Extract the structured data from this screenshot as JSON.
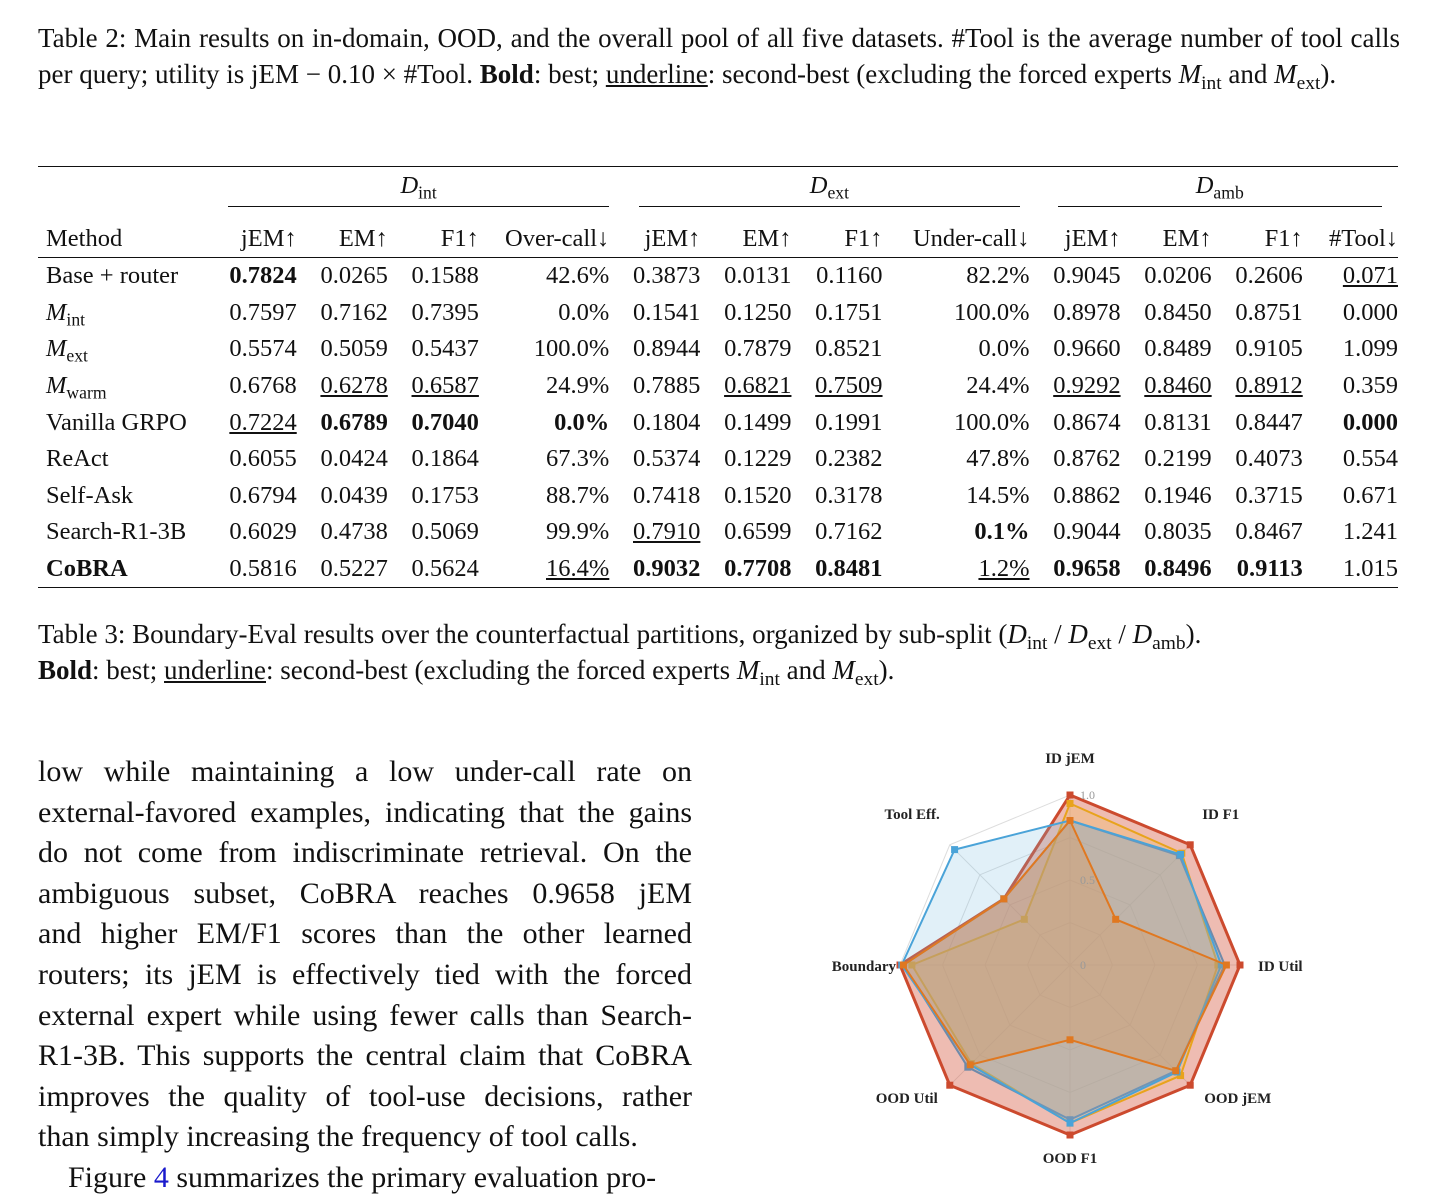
{
  "caption_table2": {
    "label": "Table 2:",
    "text1": "Main results on in-domain, OOD, and the overall pool of all five datasets. #Tool is the average number of tool calls per query; utility is jEM − 0.10 × #Tool. ",
    "bold_word": "Bold",
    "text2": ": best; ",
    "underline_word": "underline",
    "text3": ": second-best (excluding the forced experts ",
    "m_int": "M",
    "int_sub": "int",
    "and": " and ",
    "m_ext": "M",
    "ext_sub": "ext",
    "end": ")."
  },
  "table": {
    "groups": [
      {
        "sym": "D",
        "sub": "int"
      },
      {
        "sym": "D",
        "sub": "ext"
      },
      {
        "sym": "D",
        "sub": "amb"
      }
    ],
    "headers": [
      "Method",
      "jEM↑",
      "EM↑",
      "F1↑",
      "Over-call↓",
      "jEM↑",
      "EM↑",
      "F1↑",
      "Under-call↓",
      "jEM↑",
      "EM↑",
      "F1↑",
      "#Tool↓"
    ],
    "rows": [
      {
        "method": "Base + router",
        "cells": [
          "0.7824",
          "0.0265",
          "0.1588",
          "42.6%",
          "0.3873",
          "0.0131",
          "0.1160",
          "82.2%",
          "0.9045",
          "0.0206",
          "0.2606",
          "0.071"
        ],
        "bold": [
          0
        ],
        "under": [
          11
        ]
      },
      {
        "method": "M",
        "sub": "int",
        "cells": [
          "0.7597",
          "0.7162",
          "0.7395",
          "0.0%",
          "0.1541",
          "0.1250",
          "0.1751",
          "100.0%",
          "0.8978",
          "0.8450",
          "0.8751",
          "0.000"
        ],
        "bold": [],
        "under": []
      },
      {
        "method": "M",
        "sub": "ext",
        "cells": [
          "0.5574",
          "0.5059",
          "0.5437",
          "100.0%",
          "0.8944",
          "0.7879",
          "0.8521",
          "0.0%",
          "0.9660",
          "0.8489",
          "0.9105",
          "1.099"
        ],
        "bold": [],
        "under": []
      },
      {
        "method": "M",
        "sub": "warm",
        "cells": [
          "0.6768",
          "0.6278",
          "0.6587",
          "24.9%",
          "0.7885",
          "0.6821",
          "0.7509",
          "24.4%",
          "0.9292",
          "0.8460",
          "0.8912",
          "0.359"
        ],
        "bold": [],
        "under": [
          1,
          2,
          5,
          6,
          8,
          9,
          10
        ]
      },
      {
        "method": "Vanilla GRPO",
        "cells": [
          "0.7224",
          "0.6789",
          "0.7040",
          "0.0%",
          "0.1804",
          "0.1499",
          "0.1991",
          "100.0%",
          "0.8674",
          "0.8131",
          "0.8447",
          "0.000"
        ],
        "bold": [
          1,
          2,
          3,
          11
        ],
        "under": [
          0
        ]
      },
      {
        "method": "ReAct",
        "cells": [
          "0.6055",
          "0.0424",
          "0.1864",
          "67.3%",
          "0.5374",
          "0.1229",
          "0.2382",
          "47.8%",
          "0.8762",
          "0.2199",
          "0.4073",
          "0.554"
        ],
        "bold": [],
        "under": []
      },
      {
        "method": "Self-Ask",
        "cells": [
          "0.6794",
          "0.0439",
          "0.1753",
          "88.7%",
          "0.7418",
          "0.1520",
          "0.3178",
          "14.5%",
          "0.8862",
          "0.1946",
          "0.3715",
          "0.671"
        ],
        "bold": [],
        "under": []
      },
      {
        "method": "Search-R1-3B",
        "cells": [
          "0.6029",
          "0.4738",
          "0.5069",
          "99.9%",
          "0.7910",
          "0.6599",
          "0.7162",
          "0.1%",
          "0.9044",
          "0.8035",
          "0.8467",
          "1.241"
        ],
        "bold": [
          7
        ],
        "under": [
          4
        ]
      },
      {
        "method": "CoBRA",
        "method_bold": true,
        "cells": [
          "0.5816",
          "0.5227",
          "0.5624",
          "16.4%",
          "0.9032",
          "0.7708",
          "0.8481",
          "1.2%",
          "0.9658",
          "0.8496",
          "0.9113",
          "1.015"
        ],
        "bold": [
          4,
          5,
          6,
          8,
          9,
          10
        ],
        "under": [
          3,
          7
        ]
      }
    ]
  },
  "caption_table3": {
    "label": "Table 3:",
    "text1": "Boundary-Eval results over the counterfactual partitions, organized by sub-split (",
    "d": "D",
    "int": "int",
    "slash": " / ",
    "ext": "ext",
    "amb": "amb",
    "close": ").",
    "bold_word": "Bold",
    "text2": ": best; ",
    "underline_word": "underline",
    "text3": ": second-best (excluding the forced experts ",
    "m": "M",
    "and": " and ",
    "end": ")."
  },
  "paragraph": {
    "lines": [
      "low while maintaining a low under-call rate on",
      "external-favored examples, indicating that the gains",
      "do not come from indiscriminate retrieval. On the",
      "ambiguous subset, CoBRA reaches 0.9658 jEM",
      "and higher EM/F1 scores than the other learned",
      "routers; its jEM is effectively tied with the forced",
      "external expert while using fewer calls than Search-",
      "R1-3B. This supports the central claim that CoBRA",
      "improves the quality of tool-use decisions, rather",
      "than simply increasing the frequency of tool calls."
    ],
    "next_line_start": "Figure ",
    "next_line_link": "4",
    "next_line_rest": " summarizes the primary evaluation pro-"
  },
  "chart_data": {
    "type": "radar",
    "axes": [
      "ID jEM",
      "ID F1",
      "ID Util",
      "OOD jEM",
      "OOD F1",
      "OOD Util",
      "Boundary",
      "Tool Eff."
    ],
    "rlim": [
      0,
      1
    ],
    "rticks": [
      "0",
      "0.5",
      "1.0"
    ],
    "series": [
      {
        "color": "#cc4a2e",
        "values": [
          1.0,
          1.0,
          1.0,
          1.0,
          1.0,
          1.0,
          1.0,
          0.55
        ]
      },
      {
        "color": "#e8a31c",
        "values": [
          0.95,
          0.93,
          0.87,
          0.92,
          0.93,
          0.82,
          0.93,
          0.38
        ]
      },
      {
        "color": "#6f8aaa",
        "values": [
          0.85,
          0.91,
          0.91,
          0.88,
          0.91,
          0.85,
          0.98,
          0.55
        ]
      },
      {
        "color": "#4aa3d8",
        "values": [
          0.85,
          0.92,
          0.89,
          0.89,
          0.93,
          0.83,
          0.99,
          0.96
        ]
      },
      {
        "color": "#e07820",
        "values": [
          0.85,
          0.38,
          0.92,
          0.88,
          0.44,
          0.83,
          0.98,
          0.55
        ]
      }
    ]
  }
}
